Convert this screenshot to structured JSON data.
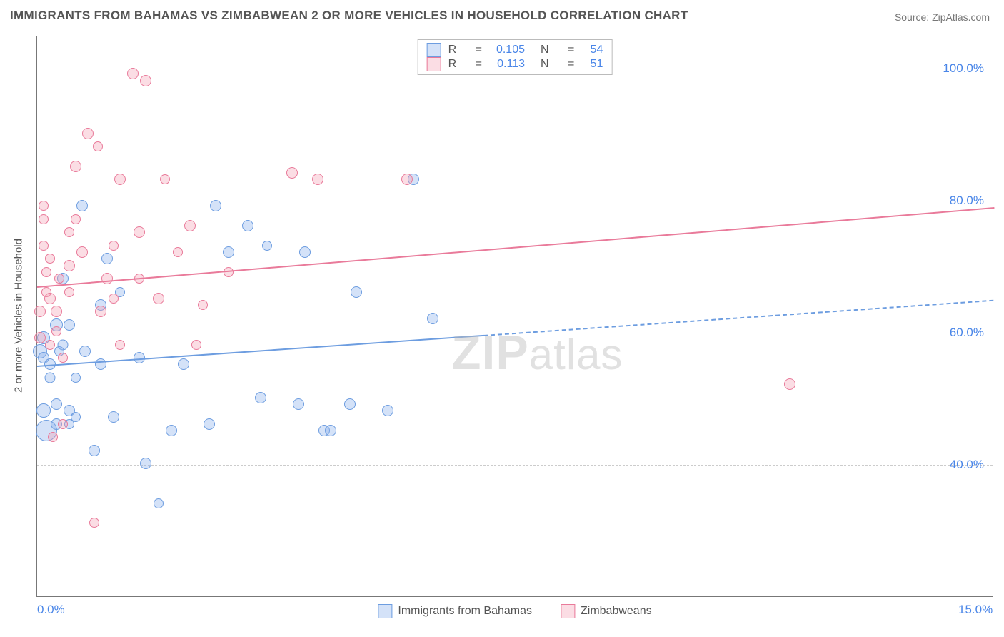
{
  "title": "IMMIGRANTS FROM BAHAMAS VS ZIMBABWEAN 2 OR MORE VEHICLES IN HOUSEHOLD CORRELATION CHART",
  "source": "Source: ZipAtlas.com",
  "watermark_a": "ZIP",
  "watermark_b": "atlas",
  "ylabel": "2 or more Vehicles in Household",
  "chart": {
    "type": "scatter",
    "xlim": [
      0,
      15
    ],
    "ylim": [
      20,
      105
    ],
    "xticks": [
      {
        "value": 0,
        "label": "0.0%"
      },
      {
        "value": 15,
        "label": "15.0%"
      }
    ],
    "yticks": [
      {
        "value": 40,
        "label": "40.0%"
      },
      {
        "value": 60,
        "label": "60.0%"
      },
      {
        "value": 80,
        "label": "80.0%"
      },
      {
        "value": 100,
        "label": "100.0%"
      }
    ],
    "grid_color": "#cccccc",
    "background_color": "#ffffff",
    "axis_color": "#777777",
    "tick_label_color": "#4a86e8"
  },
  "series": [
    {
      "id": "bahamas",
      "label": "Immigrants from Bahamas",
      "fill": "rgba(131,172,234,0.35)",
      "stroke": "#6d9de0",
      "R": "0.105",
      "N": "54",
      "trend": {
        "y_at_x0": 55,
        "y_at_x15": 65,
        "solid_until_x": 7.0
      },
      "points": [
        [
          0.05,
          57,
          20
        ],
        [
          0.1,
          59,
          18
        ],
        [
          0.1,
          56,
          16
        ],
        [
          0.1,
          48,
          20
        ],
        [
          0.15,
          45,
          30
        ],
        [
          0.2,
          55,
          16
        ],
        [
          0.2,
          53,
          15
        ],
        [
          0.3,
          61,
          18
        ],
        [
          0.3,
          49,
          16
        ],
        [
          0.3,
          46,
          16
        ],
        [
          0.35,
          57,
          14
        ],
        [
          0.4,
          58,
          15
        ],
        [
          0.4,
          68,
          16
        ],
        [
          0.5,
          48,
          16
        ],
        [
          0.5,
          61,
          16
        ],
        [
          0.5,
          46,
          14
        ],
        [
          0.6,
          47,
          14
        ],
        [
          0.6,
          53,
          14
        ],
        [
          0.7,
          79,
          16
        ],
        [
          0.75,
          57,
          16
        ],
        [
          0.9,
          42,
          16
        ],
        [
          1.0,
          64,
          16
        ],
        [
          1.0,
          55,
          16
        ],
        [
          1.1,
          71,
          16
        ],
        [
          1.2,
          47,
          16
        ],
        [
          1.3,
          66,
          14
        ],
        [
          1.6,
          56,
          16
        ],
        [
          1.7,
          40,
          16
        ],
        [
          1.9,
          34,
          14
        ],
        [
          2.1,
          45,
          16
        ],
        [
          2.3,
          55,
          16
        ],
        [
          2.7,
          46,
          16
        ],
        [
          2.8,
          79,
          16
        ],
        [
          3.0,
          72,
          16
        ],
        [
          3.3,
          76,
          16
        ],
        [
          3.5,
          50,
          16
        ],
        [
          3.6,
          73,
          14
        ],
        [
          4.1,
          49,
          16
        ],
        [
          4.2,
          72,
          16
        ],
        [
          4.5,
          45,
          16
        ],
        [
          4.6,
          45,
          16
        ],
        [
          4.9,
          49,
          16
        ],
        [
          5.0,
          66,
          16
        ],
        [
          5.5,
          48,
          16
        ],
        [
          5.9,
          83,
          16
        ],
        [
          6.2,
          62,
          16
        ]
      ]
    },
    {
      "id": "zimbabwe",
      "label": "Zimbabweans",
      "fill": "rgba(244,157,178,0.35)",
      "stroke": "#e97a9a",
      "R": "0.113",
      "N": "51",
      "trend": {
        "y_at_x0": 67,
        "y_at_x15": 79,
        "solid_until_x": 15
      },
      "points": [
        [
          0.05,
          63,
          16
        ],
        [
          0.05,
          59,
          16
        ],
        [
          0.1,
          79,
          14
        ],
        [
          0.1,
          77,
          14
        ],
        [
          0.1,
          73,
          14
        ],
        [
          0.15,
          66,
          14
        ],
        [
          0.15,
          69,
          14
        ],
        [
          0.2,
          58,
          14
        ],
        [
          0.2,
          65,
          16
        ],
        [
          0.2,
          71,
          14
        ],
        [
          0.25,
          44,
          14
        ],
        [
          0.3,
          60,
          14
        ],
        [
          0.3,
          63,
          16
        ],
        [
          0.35,
          68,
          14
        ],
        [
          0.4,
          56,
          14
        ],
        [
          0.4,
          46,
          14
        ],
        [
          0.5,
          75,
          14
        ],
        [
          0.5,
          70,
          16
        ],
        [
          0.5,
          66,
          14
        ],
        [
          0.6,
          77,
          14
        ],
        [
          0.6,
          85,
          16
        ],
        [
          0.7,
          72,
          16
        ],
        [
          0.8,
          90,
          16
        ],
        [
          0.9,
          31,
          14
        ],
        [
          0.95,
          88,
          14
        ],
        [
          1.0,
          63,
          16
        ],
        [
          1.1,
          68,
          16
        ],
        [
          1.2,
          65,
          14
        ],
        [
          1.2,
          73,
          14
        ],
        [
          1.3,
          58,
          14
        ],
        [
          1.3,
          83,
          16
        ],
        [
          1.5,
          99,
          16
        ],
        [
          1.6,
          75,
          16
        ],
        [
          1.6,
          68,
          14
        ],
        [
          1.7,
          98,
          16
        ],
        [
          1.9,
          65,
          16
        ],
        [
          2.0,
          83,
          14
        ],
        [
          2.2,
          72,
          14
        ],
        [
          2.4,
          76,
          16
        ],
        [
          2.5,
          58,
          14
        ],
        [
          2.6,
          64,
          14
        ],
        [
          3.0,
          69,
          14
        ],
        [
          4.0,
          84,
          16
        ],
        [
          4.4,
          83,
          16
        ],
        [
          5.8,
          83,
          16
        ],
        [
          11.8,
          52,
          16
        ]
      ]
    }
  ],
  "legend_top": {
    "R_label": "R",
    "N_label": "N",
    "eq": "="
  },
  "legend_bottom": {
    "items_from": "series"
  }
}
